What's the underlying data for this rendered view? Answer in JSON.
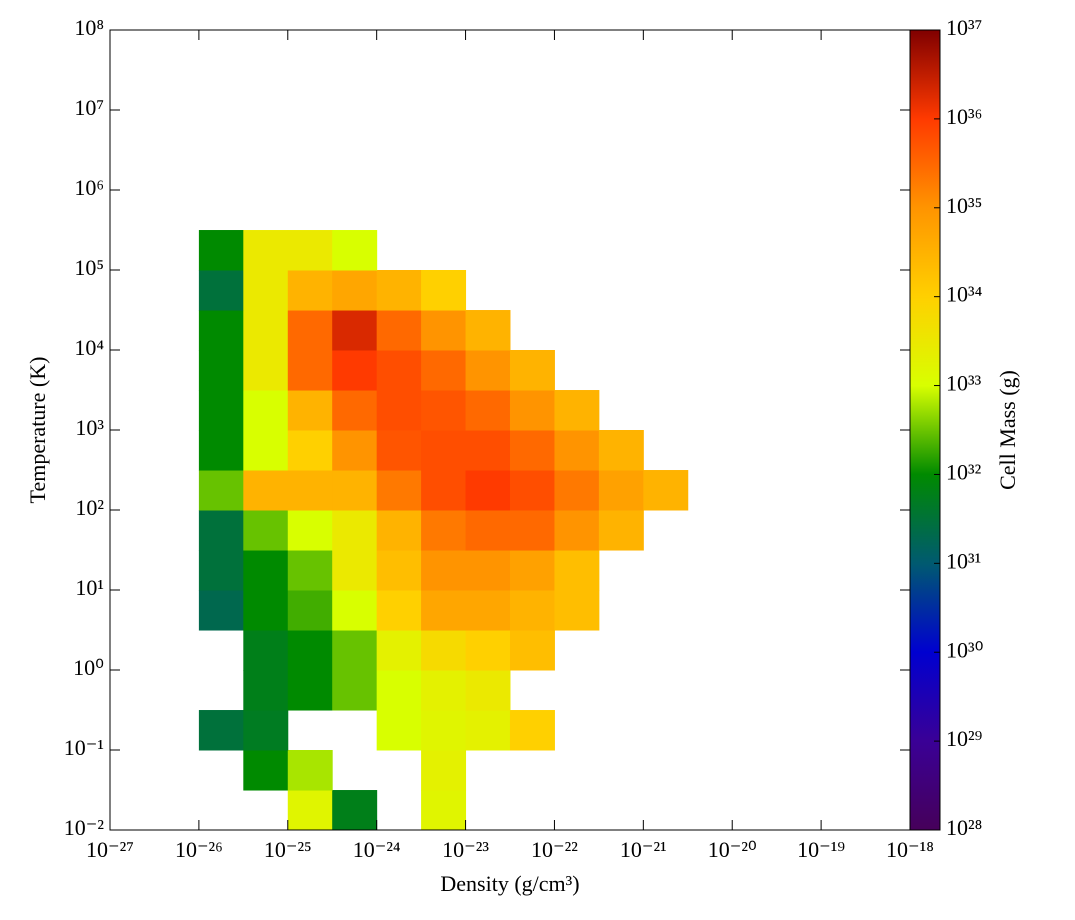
{
  "chart_data": {
    "type": "heatmap",
    "xlabel": "Density  (g/cm³)",
    "ylabel": "Temperature  (K)",
    "colorbar_label": "Cell Mass  (g)",
    "xscale": "log",
    "yscale": "log",
    "cscale": "log",
    "xlim": [
      1e-27,
      1e-18
    ],
    "ylim": [
      0.01,
      100000000
    ],
    "clim": [
      1e+28,
      1e+37
    ],
    "x_bins": [
      1e-26,
      3.16e-26,
      1e-25,
      3.16e-25,
      1e-24,
      3.16e-24,
      1e-23,
      3.16e-23,
      1e-22,
      3.16e-22,
      1e-21,
      3.16e-21
    ],
    "y_bins": [
      0.01,
      0.0316,
      0.1,
      0.316,
      1,
      3.16,
      10,
      31.6,
      100,
      316,
      1000,
      3160,
      10000,
      31600,
      100000,
      316000
    ],
    "values": [
      [
        null,
        null,
        1.6e+33,
        6e+31,
        null,
        1.6e+33,
        null,
        null,
        null,
        null,
        null
      ],
      [
        null,
        1e+32,
        6e+32,
        null,
        null,
        2e+33,
        null,
        null,
        null,
        null,
        null
      ],
      [
        3e+31,
        5e+31,
        null,
        null,
        1e+33,
        1.6e+33,
        2e+33,
        1e+34,
        null,
        null,
        null
      ],
      [
        null,
        6e+31,
        1e+32,
        3e+32,
        1e+33,
        2e+33,
        3e+33,
        null,
        null,
        null,
        null
      ],
      [
        null,
        6e+31,
        1e+32,
        3e+32,
        2e+33,
        6e+33,
        1e+34,
        2e+34,
        null,
        null,
        null
      ],
      [
        2e+31,
        1e+32,
        2e+32,
        1e+33,
        1e+34,
        5e+34,
        5e+34,
        3e+34,
        2e+34,
        null,
        null
      ],
      [
        3e+31,
        1e+32,
        3e+32,
        3e+33,
        2e+34,
        1e+35,
        1e+35,
        6e+34,
        2e+34,
        null,
        null
      ],
      [
        3e+31,
        3e+32,
        1e+33,
        3e+33,
        3e+34,
        2e+35,
        3e+35,
        3e+35,
        1e+35,
        3e+34,
        null
      ],
      [
        3e+32,
        3e+34,
        3e+34,
        3e+34,
        2e+35,
        6e+35,
        1e+36,
        6e+35,
        2e+35,
        6e+34,
        3e+34
      ],
      [
        1e+32,
        1e+33,
        1e+34,
        1e+35,
        5e+35,
        6e+35,
        6e+35,
        3e+35,
        1e+35,
        3e+34,
        null
      ],
      [
        1e+32,
        1e+33,
        3e+34,
        3e+35,
        6e+35,
        5e+35,
        3e+35,
        1e+35,
        3e+34,
        null,
        null
      ],
      [
        1e+32,
        3e+33,
        3e+35,
        1e+36,
        6e+35,
        3e+35,
        1e+35,
        3e+34,
        null,
        null,
        null
      ],
      [
        1e+32,
        3e+33,
        3e+35,
        2e+36,
        3e+35,
        1e+35,
        3e+34,
        null,
        null,
        null,
        null
      ],
      [
        3e+31,
        3e+33,
        3e+34,
        5e+34,
        3e+34,
        1e+34,
        null,
        null,
        null,
        null,
        null
      ],
      [
        1e+32,
        3e+33,
        3e+33,
        1e+33,
        null,
        null,
        null,
        null,
        null,
        null,
        null
      ]
    ],
    "colormap": [
      "#46005a",
      "#3a0096",
      "#0000d0",
      "#005a70",
      "#008a00",
      "#d8ff00",
      "#ffd000",
      "#ff9400",
      "#ff3a00",
      "#800000"
    ],
    "xticks": [
      {
        "value": 1e-27,
        "label": "10⁻²⁷"
      },
      {
        "value": 1e-26,
        "label": "10⁻²⁶"
      },
      {
        "value": 1e-25,
        "label": "10⁻²⁵"
      },
      {
        "value": 1e-24,
        "label": "10⁻²⁴"
      },
      {
        "value": 1e-23,
        "label": "10⁻²³"
      },
      {
        "value": 1e-22,
        "label": "10⁻²²"
      },
      {
        "value": 1e-21,
        "label": "10⁻²¹"
      },
      {
        "value": 1e-20,
        "label": "10⁻²⁰"
      },
      {
        "value": 1e-19,
        "label": "10⁻¹⁹"
      },
      {
        "value": 1e-18,
        "label": "10⁻¹⁸"
      }
    ],
    "yticks": [
      {
        "value": 0.01,
        "label": "10⁻²"
      },
      {
        "value": 0.1,
        "label": "10⁻¹"
      },
      {
        "value": 1,
        "label": "10⁰"
      },
      {
        "value": 10,
        "label": "10¹"
      },
      {
        "value": 100,
        "label": "10²"
      },
      {
        "value": 1000,
        "label": "10³"
      },
      {
        "value": 10000,
        "label": "10⁴"
      },
      {
        "value": 100000,
        "label": "10⁵"
      },
      {
        "value": 1000000,
        "label": "10⁶"
      },
      {
        "value": 10000000,
        "label": "10⁷"
      },
      {
        "value": 100000000,
        "label": "10⁸"
      }
    ],
    "cticks": [
      {
        "value": 1e+28,
        "label": "10²⁸"
      },
      {
        "value": 1e+29,
        "label": "10²⁹"
      },
      {
        "value": 1e+30,
        "label": "10³⁰"
      },
      {
        "value": 1e+31,
        "label": "10³¹"
      },
      {
        "value": 1e+32,
        "label": "10³²"
      },
      {
        "value": 1e+33,
        "label": "10³³"
      },
      {
        "value": 1e+34,
        "label": "10³⁴"
      },
      {
        "value": 1e+35,
        "label": "10³⁵"
      },
      {
        "value": 1e+36,
        "label": "10³⁶"
      },
      {
        "value": 1e+37,
        "label": "10³⁷"
      }
    ]
  }
}
